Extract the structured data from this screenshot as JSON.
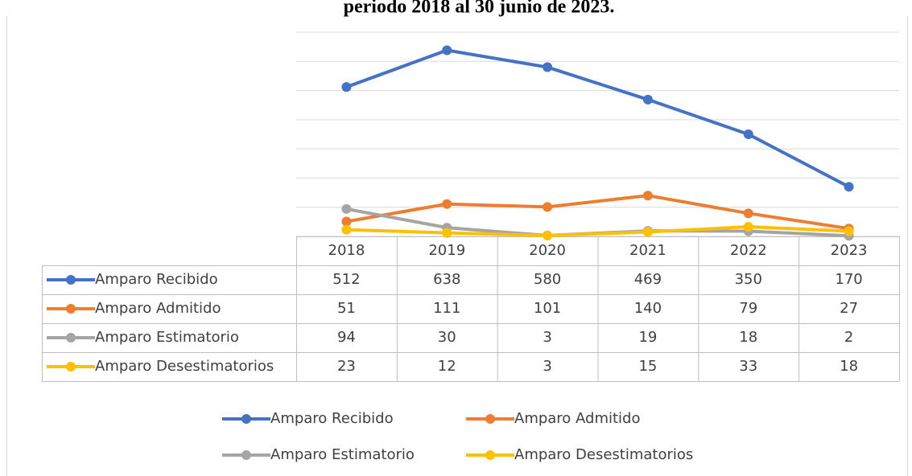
{
  "chart_data": {
    "type": "line",
    "title": "periodo 2018 al 30 junio de 2023.",
    "categories": [
      "2018",
      "2019",
      "2020",
      "2021",
      "2022",
      "2023"
    ],
    "series": [
      {
        "name": "Amparo Recibido",
        "color": "#4472c4",
        "values": [
          512,
          638,
          580,
          469,
          350,
          170
        ]
      },
      {
        "name": "Amparo Admitido",
        "color": "#ed7d31",
        "values": [
          51,
          111,
          101,
          140,
          79,
          27
        ]
      },
      {
        "name": "Amparo Estimatorio",
        "color": "#a5a5a5",
        "values": [
          94,
          30,
          3,
          19,
          18,
          2
        ]
      },
      {
        "name": "Amparo Desestimatorios",
        "color": "#ffc000",
        "values": [
          23,
          12,
          3,
          15,
          33,
          18
        ]
      }
    ],
    "ylim": [
      0,
      700
    ],
    "yticks": [
      0,
      100,
      200,
      300,
      400,
      500,
      600,
      700
    ],
    "grid": true
  }
}
